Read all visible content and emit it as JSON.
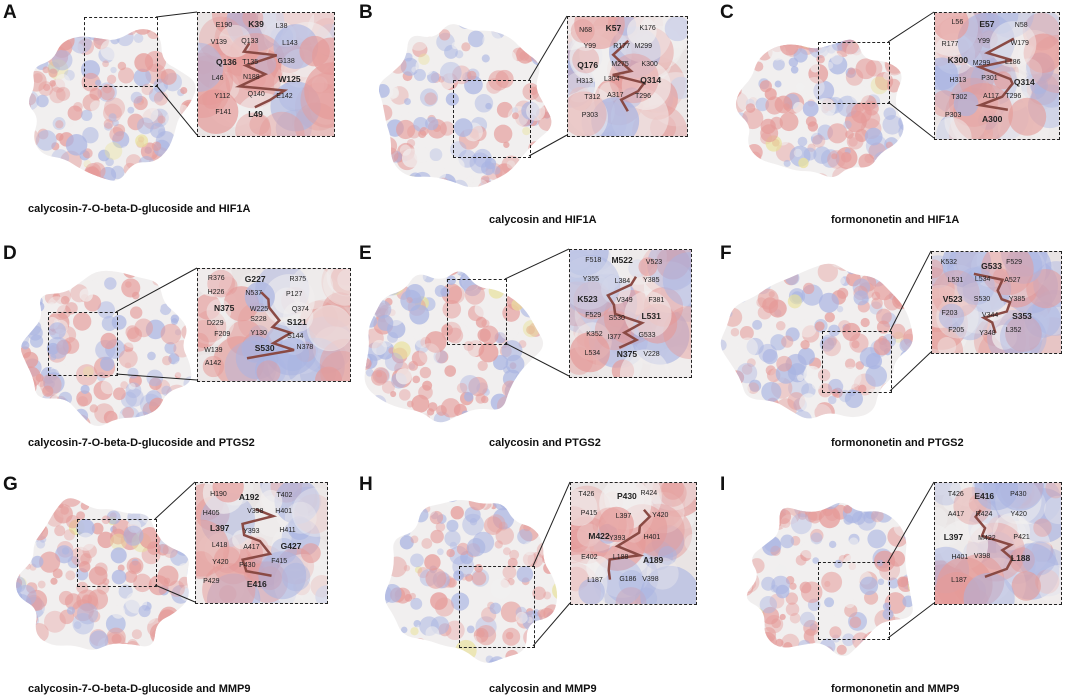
{
  "colors": {
    "surface_white": "#f1efef",
    "surface_red": "#e59a98",
    "surface_blue": "#a9b4e2",
    "surface_yellow": "#e9e29c",
    "ligand": "#8a4a44"
  },
  "panels": [
    {
      "letter": "A",
      "caption": "calycosin-7-O-beta-D-glucoside and HIF1A",
      "residues": [
        "E190",
        "K39",
        "L38",
        "V139",
        "Q133",
        "L143",
        "Q136",
        "T135",
        "G138",
        "L46",
        "N188",
        "W125",
        "Y112",
        "Q140",
        "E142",
        "F141",
        "L49"
      ]
    },
    {
      "letter": "B",
      "caption": "calycosin and HIF1A",
      "residues": [
        "N68",
        "K57",
        "K176",
        "Y99",
        "R177",
        "M299",
        "Q176",
        "M275",
        "K300",
        "H313",
        "L304",
        "Q314",
        "T312",
        "A317",
        "T296",
        "P303"
      ]
    },
    {
      "letter": "C",
      "caption": "formononetin and HIF1A",
      "residues": [
        "L56",
        "E57",
        "N58",
        "R177",
        "Y99",
        "W179",
        "K300",
        "M299",
        "L186",
        "H313",
        "P301",
        "Q314",
        "T302",
        "A117",
        "T296",
        "P303",
        "A300"
      ]
    },
    {
      "letter": "D",
      "caption": "calycosin-7-O-beta-D-glucoside and PTGS2",
      "residues": [
        "R376",
        "G227",
        "R375",
        "H226",
        "N537",
        "P127",
        "N375",
        "W225",
        "Q374",
        "D229",
        "S228",
        "S121",
        "F209",
        "Y130",
        "S144",
        "W139",
        "S530",
        "N378",
        "A142"
      ]
    },
    {
      "letter": "E",
      "caption": "calycosin and PTGS2",
      "residues": [
        "F518",
        "M522",
        "V523",
        "Y355",
        "L384",
        "Y385",
        "K523",
        "V349",
        "F381",
        "F529",
        "S530",
        "L531",
        "K352",
        "I377",
        "G533",
        "L534",
        "N375",
        "V228"
      ]
    },
    {
      "letter": "F",
      "caption": "formononetin and PTGS2",
      "residues": [
        "K532",
        "G533",
        "F529",
        "L531",
        "L534",
        "A527",
        "V523",
        "S530",
        "Y385",
        "F203",
        "V344",
        "S353",
        "F205",
        "Y348",
        "L352"
      ]
    },
    {
      "letter": "G",
      "caption": "calycosin-7-O-beta-D-glucoside and MMP9",
      "residues": [
        "H190",
        "A192",
        "T402",
        "H405",
        "V398",
        "H401",
        "L397",
        "Y393",
        "H411",
        "L418",
        "A417",
        "G427",
        "Y420",
        "P430",
        "F415",
        "P429",
        "E416"
      ]
    },
    {
      "letter": "H",
      "caption": "calycosin and MMP9",
      "residues": [
        "T426",
        "P430",
        "R424",
        "P415",
        "L397",
        "Y420",
        "M422",
        "Y393",
        "H401",
        "E402",
        "L188",
        "A189",
        "L187",
        "G186",
        "V398"
      ]
    },
    {
      "letter": "I",
      "caption": "formononetin and MMP9",
      "residues": [
        "T426",
        "E416",
        "P430",
        "A417",
        "R424",
        "Y420",
        "L397",
        "M422",
        "P421",
        "H401",
        "V398",
        "L188",
        "L187"
      ]
    }
  ]
}
